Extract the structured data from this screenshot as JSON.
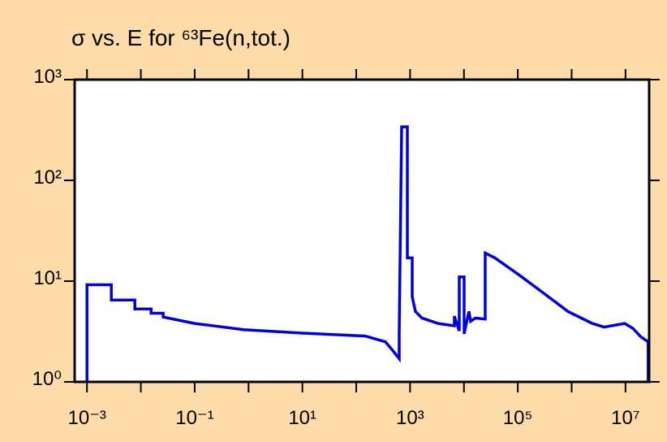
{
  "chart_data": {
    "type": "line",
    "title": "σ vs. E for ⁶³Fe(n,tot.)",
    "xscale": "log",
    "yscale": "log",
    "xlim": [
      0.00059,
      27500000
    ],
    "ylim": [
      1,
      1000
    ],
    "xticks": [
      {
        "value": 0.001,
        "label": "10⁻³"
      },
      {
        "value": 0.1,
        "label": "10⁻¹"
      },
      {
        "value": 10,
        "label": "10¹"
      },
      {
        "value": 1000,
        "label": "10³"
      },
      {
        "value": 100000,
        "label": "10⁵"
      },
      {
        "value": 10000000,
        "label": "10⁷"
      }
    ],
    "xminor_ticks": [
      0.01,
      1,
      100,
      10000,
      1000000
    ],
    "yticks": [
      {
        "value": 1,
        "label": "10⁰"
      },
      {
        "value": 10,
        "label": "10¹"
      },
      {
        "value": 100,
        "label": "10²"
      },
      {
        "value": 1000,
        "label": "10³"
      }
    ],
    "series": [
      {
        "color": "#0000dd",
        "x": [
          0.001,
          0.001,
          0.00283,
          0.00283,
          0.00774,
          0.00774,
          0.0155,
          0.0155,
          0.026,
          0.026,
          0.1,
          0.81,
          10,
          147,
          348,
          494,
          628,
          628,
          697,
          889,
          889,
          1095,
          1095,
          1257,
          1660,
          3320,
          6640,
          6640,
          8180,
          8180,
          10080,
          10080,
          12400,
          13300,
          16400,
          24800,
          24800,
          37600,
          106000,
          301000,
          853000,
          2420000,
          4000000,
          9660000,
          13700000,
          19300000,
          26400000,
          26400000
        ],
        "values": [
          1,
          9.2,
          9.2,
          6.5,
          6.5,
          5.3,
          5.3,
          4.8,
          4.8,
          4.4,
          3.8,
          3.3,
          3.05,
          2.85,
          2.5,
          2.0,
          1.7,
          3.0,
          340,
          340,
          17,
          17,
          7,
          5,
          4.3,
          3.8,
          3.6,
          4.5,
          3.2,
          11,
          11,
          3.0,
          5,
          4,
          4.3,
          4.2,
          19,
          17,
          11.5,
          7.6,
          5,
          3.8,
          3.5,
          3.8,
          3.4,
          2.8,
          2.5,
          1
        ]
      }
    ]
  }
}
